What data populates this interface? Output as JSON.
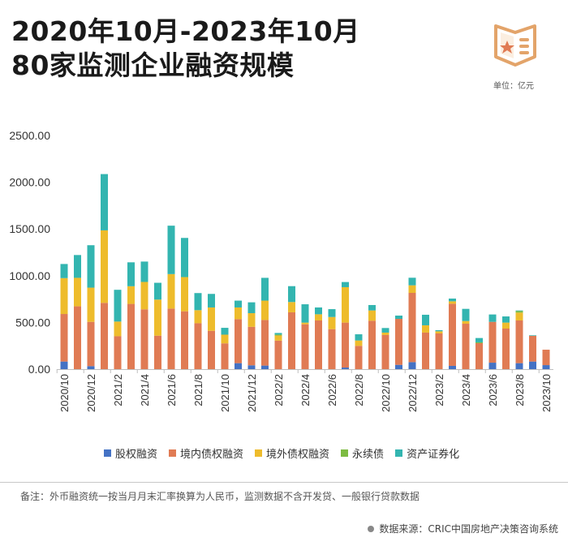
{
  "title_line1": "2020年10月-2023年10月",
  "title_line2": "80家监测企业融资规模",
  "unit_label": "单位：亿元",
  "note": "备注：外币融资统一按当月月末汇率换算为人民币，监测数据不含开发贷、一般银行贷款数据",
  "source": "数据来源：CRIC中国房地产决策咨询系统",
  "logo_icon": "book-star-icon",
  "chart_data": {
    "type": "bar",
    "stacked": true,
    "title": "2020年10月-2023年10月 80家监测企业融资规模",
    "ylabel": "亿元",
    "ylim": [
      0,
      2500
    ],
    "yticks": [
      "0.00",
      "500.00",
      "1000.00",
      "1500.00",
      "2000.00",
      "2500.00"
    ],
    "ytick_values": [
      0,
      500,
      1000,
      1500,
      2000,
      2500
    ],
    "grid": false,
    "legend_position": "bottom",
    "categories": [
      "2020/10",
      "2020/11",
      "2020/12",
      "2021/1",
      "2021/2",
      "2021/3",
      "2021/4",
      "2021/5",
      "2021/6",
      "2021/7",
      "2021/8",
      "2021/9",
      "2021/10",
      "2021/11",
      "2021/12",
      "2022/1",
      "2022/2",
      "2022/3",
      "2022/4",
      "2022/5",
      "2022/6",
      "2022/7",
      "2022/8",
      "2022/9",
      "2022/10",
      "2022/11",
      "2022/12",
      "2023/1",
      "2023/2",
      "2023/3",
      "2023/4",
      "2023/5",
      "2023/6",
      "2023/7",
      "2023/8",
      "2023/9",
      "2023/10"
    ],
    "xtick_labels": [
      "2020/10",
      "2020/12",
      "2021/2",
      "2021/4",
      "2021/6",
      "2021/8",
      "2021/10",
      "2021/12",
      "2022/2",
      "2022/4",
      "2022/6",
      "2022/8",
      "2022/10",
      "2022/12",
      "2023/2",
      "2023/4",
      "2023/6",
      "2023/8",
      "2023/10"
    ],
    "series": [
      {
        "name": "股权融资",
        "color": "#4472c4",
        "values": [
          81,
          0,
          32,
          0,
          0,
          0,
          0,
          0,
          0,
          0,
          0,
          0,
          0,
          64,
          41,
          38,
          0,
          0,
          0,
          0,
          0,
          17,
          0,
          0,
          0,
          46,
          75,
          0,
          0,
          35,
          0,
          0,
          69,
          0,
          64,
          81,
          43
        ]
      },
      {
        "name": "境内债权融资",
        "color": "#e07b54",
        "values": [
          509,
          672,
          474,
          709,
          352,
          698,
          640,
          358,
          648,
          619,
          491,
          410,
          276,
          471,
          412,
          488,
          305,
          608,
          480,
          521,
          428,
          481,
          249,
          518,
          365,
          492,
          741,
          391,
          382,
          665,
          486,
          278,
          437,
          434,
          457,
          275,
          165
        ]
      },
      {
        "name": "境外债权融资",
        "color": "#eebc2c",
        "values": [
          384,
          305,
          366,
          776,
          157,
          189,
          293,
          386,
          369,
          366,
          140,
          250,
          93,
          125,
          146,
          207,
          55,
          110,
          18,
          66,
          130,
          379,
          58,
          110,
          26,
          0,
          81,
          78,
          23,
          26,
          29,
          0,
          0,
          64,
          84,
          0,
          0
        ]
      },
      {
        "name": "永续债",
        "color": "#7dbb42",
        "values": [
          0,
          0,
          0,
          0,
          0,
          0,
          0,
          0,
          0,
          0,
          0,
          0,
          0,
          0,
          0,
          0,
          10,
          0,
          0,
          0,
          0,
          0,
          0,
          0,
          0,
          0,
          0,
          0,
          0,
          0,
          0,
          9,
          0,
          0,
          17,
          0,
          0
        ]
      },
      {
        "name": "资产证券化",
        "color": "#33b5b0",
        "values": [
          151,
          244,
          454,
          602,
          340,
          256,
          218,
          180,
          518,
          419,
          183,
          145,
          73,
          73,
          116,
          244,
          17,
          170,
          196,
          73,
          84,
          55,
          66,
          58,
          49,
          35,
          81,
          113,
          12,
          29,
          130,
          46,
          79,
          66,
          6,
          6,
          0
        ]
      }
    ]
  }
}
